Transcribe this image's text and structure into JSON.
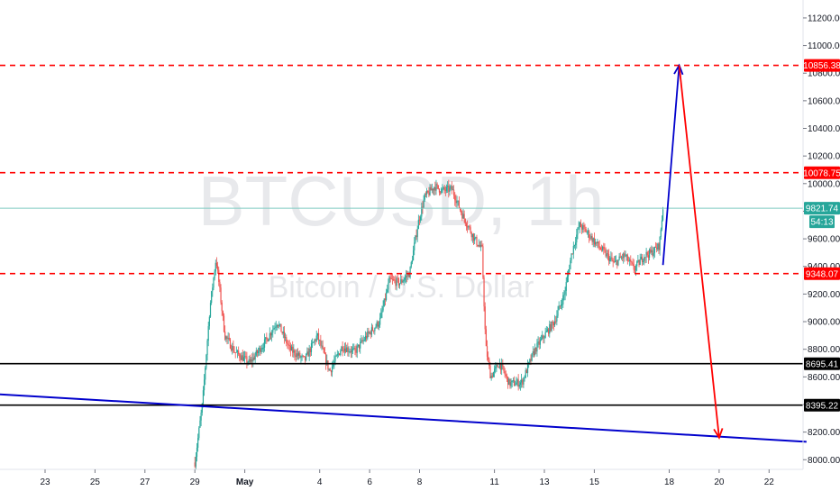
{
  "chart_data": {
    "type": "candlestick",
    "symbol": "BTCUSD",
    "interval": "1h",
    "instrument_name": "Bitcoin / U.S. Dollar",
    "ylim": [
      7930,
      11330
    ],
    "y_ticks": [
      "8000.00",
      "8200.00",
      "8400.00",
      "8600.00",
      "8800.00",
      "9000.00",
      "9200.00",
      "9400.00",
      "9600.00",
      "9800.00",
      "10000.00",
      "10200.00",
      "10400.00",
      "10600.00",
      "10800.00",
      "11000.00",
      "11200.00"
    ],
    "x_ticks": [
      {
        "label": "23",
        "day": 23
      },
      {
        "label": "25",
        "day": 25
      },
      {
        "label": "27",
        "day": 27
      },
      {
        "label": "29",
        "day": 29
      },
      {
        "label": "May",
        "day": 31,
        "bold": true
      },
      {
        "label": "4",
        "day": 34
      },
      {
        "label": "6",
        "day": 36
      },
      {
        "label": "8",
        "day": 38
      },
      {
        "label": "11",
        "day": 41
      },
      {
        "label": "13",
        "day": 43
      },
      {
        "label": "15",
        "day": 45
      },
      {
        "label": "18",
        "day": 48
      },
      {
        "label": "20",
        "day": 50
      },
      {
        "label": "22",
        "day": 52
      }
    ],
    "price_path": [
      [
        29.0,
        7980
      ],
      [
        29.3,
        8400
      ],
      [
        29.6,
        9100
      ],
      [
        29.85,
        9460
      ],
      [
        30.2,
        8900
      ],
      [
        30.6,
        8780
      ],
      [
        31.2,
        8700
      ],
      [
        31.8,
        8850
      ],
      [
        32.3,
        9000
      ],
      [
        32.8,
        8800
      ],
      [
        33.4,
        8720
      ],
      [
        33.9,
        8900
      ],
      [
        34.4,
        8640
      ],
      [
        34.9,
        8820
      ],
      [
        35.4,
        8780
      ],
      [
        35.9,
        8900
      ],
      [
        36.4,
        9000
      ],
      [
        36.8,
        9300
      ],
      [
        37.2,
        9280
      ],
      [
        37.6,
        9350
      ],
      [
        37.95,
        9720
      ],
      [
        38.2,
        9900
      ],
      [
        38.6,
        9980
      ],
      [
        38.9,
        9950
      ],
      [
        39.3,
        9960
      ],
      [
        39.7,
        9780
      ],
      [
        40.2,
        9600
      ],
      [
        40.5,
        9520
      ],
      [
        40.65,
        8820
      ],
      [
        40.85,
        8600
      ],
      [
        41.2,
        8700
      ],
      [
        41.6,
        8550
      ],
      [
        42.1,
        8560
      ],
      [
        42.6,
        8790
      ],
      [
        43.0,
        8900
      ],
      [
        43.4,
        9000
      ],
      [
        43.8,
        9200
      ],
      [
        44.1,
        9500
      ],
      [
        44.4,
        9700
      ],
      [
        44.7,
        9650
      ],
      [
        45.0,
        9580
      ],
      [
        45.4,
        9500
      ],
      [
        45.8,
        9420
      ],
      [
        46.2,
        9480
      ],
      [
        46.6,
        9380
      ],
      [
        47.0,
        9480
      ],
      [
        47.3,
        9500
      ],
      [
        47.6,
        9550
      ],
      [
        47.75,
        9821.74
      ]
    ],
    "levels": [
      {
        "price": 10856.38,
        "label": "10856.38",
        "style": "dashed",
        "color": "#ff0000"
      },
      {
        "price": 10078.75,
        "label": "10078.75",
        "style": "dashed",
        "color": "#ff0000"
      },
      {
        "price": 9348.07,
        "label": "9348.07",
        "style": "dashed",
        "color": "#ff0000"
      },
      {
        "price": 8695.41,
        "label": "8695.41",
        "style": "solid",
        "color": "#000000"
      },
      {
        "price": 8395.22,
        "label": "8395.22",
        "style": "solid",
        "color": "#000000"
      }
    ],
    "current_price": {
      "price": 9821.74,
      "label": "9821.74",
      "countdown": "54:13",
      "color": "#26a69a"
    },
    "trendline": {
      "color": "#0000cc",
      "points": [
        [
          15.9,
          8530
        ],
        [
          53.5,
          8130
        ]
      ]
    },
    "projection": {
      "up": {
        "color": "#0000cc",
        "from": [
          47.75,
          9410
        ],
        "to": [
          48.4,
          10856.38
        ]
      },
      "down": {
        "color": "#ff0000",
        "from": [
          48.4,
          10856.38
        ],
        "to": [
          50.0,
          8160
        ]
      }
    }
  }
}
